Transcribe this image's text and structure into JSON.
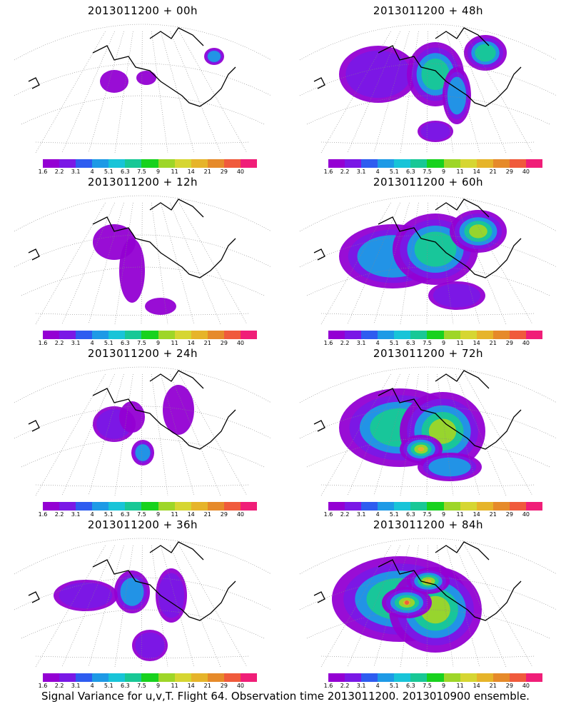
{
  "footer": "Signal Variance for u,v,T. Flight 64. Observation time 2013011200. 2013010900 ensemble.",
  "colorbar": {
    "labels": [
      "1.6",
      "2.2",
      "3.1",
      "4",
      "5.1",
      "6.3",
      "7.5",
      "9",
      "11",
      "14",
      "21",
      "29",
      "40"
    ],
    "colors": [
      "#9400d3",
      "#7a18e6",
      "#2e5cf0",
      "#1e9ae6",
      "#18c4d8",
      "#18c896",
      "#18d21e",
      "#9ed628",
      "#d6d632",
      "#e6b42a",
      "#e68a2a",
      "#f05a3c",
      "#f01e78"
    ]
  },
  "panels": [
    {
      "title": "2013011200 + 00h",
      "level": 0
    },
    {
      "title": "2013011200 + 48h",
      "level": 4
    },
    {
      "title": "2013011200 + 12h",
      "level": 1
    },
    {
      "title": "2013011200 + 60h",
      "level": 5
    },
    {
      "title": "2013011200 + 24h",
      "level": 2
    },
    {
      "title": "2013011200 + 72h",
      "level": 6
    },
    {
      "title": "2013011200 + 36h",
      "level": 3
    },
    {
      "title": "2013011200 + 84h",
      "level": 7
    }
  ]
}
